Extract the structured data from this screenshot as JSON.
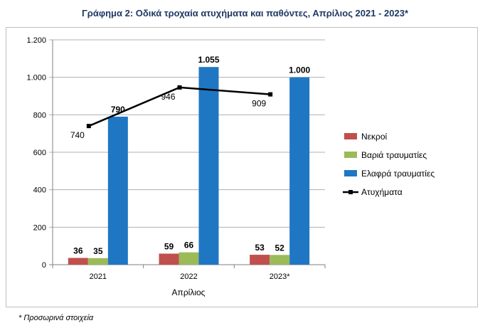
{
  "chart_data": {
    "type": "bar",
    "title": "Γράφημα 2: Οδικά τροχαία ατυχήματα και παθόντες, Απρίλιος 2021 - 2023*",
    "xlabel": "Απρίλιος",
    "ylabel": "",
    "categories": [
      "2021",
      "2022",
      "2023*"
    ],
    "ylim": [
      0,
      1200
    ],
    "yticks": [
      0,
      200,
      400,
      600,
      800,
      1000,
      1200
    ],
    "ytick_labels": [
      "0",
      "200",
      "400",
      "600",
      "800",
      "1.000",
      "1.200"
    ],
    "grid": true,
    "legend_position": "right",
    "series": [
      {
        "name": "Νεκροί",
        "kind": "bar",
        "color": "#c0504d",
        "values": [
          36,
          59,
          53
        ],
        "labels": [
          "36",
          "59",
          "53"
        ]
      },
      {
        "name": "Βαριά τραυματίες",
        "kind": "bar",
        "color": "#9bbb59",
        "values": [
          35,
          66,
          52
        ],
        "labels": [
          "35",
          "66",
          "52"
        ]
      },
      {
        "name": "Ελαφρά τραυματίες",
        "kind": "bar",
        "color": "#1f77c4",
        "values": [
          790,
          1055,
          1000
        ],
        "labels": [
          "790",
          "1.055",
          "1.000"
        ]
      },
      {
        "name": "Ατυχήματα",
        "kind": "line",
        "color": "#000000",
        "values": [
          740,
          946,
          909
        ],
        "labels": [
          "740",
          "946",
          "909"
        ]
      }
    ]
  },
  "footnote": "* Προσωρινά στοιχεία"
}
